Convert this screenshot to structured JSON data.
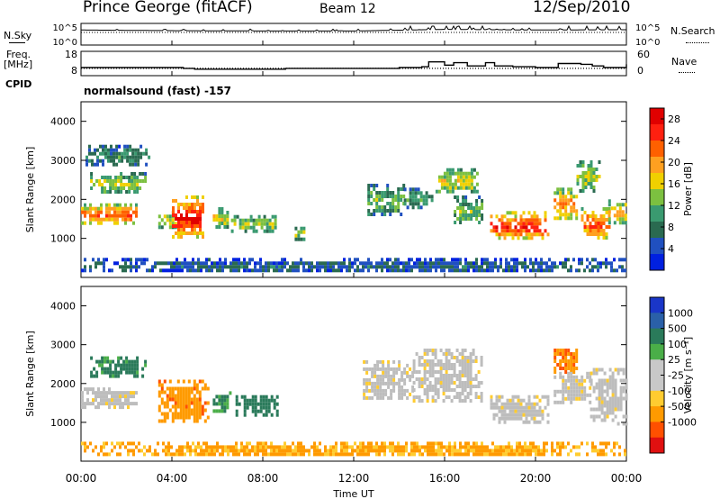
{
  "header": {
    "site": "Prince George (fitACF)",
    "beam": "Beam 12",
    "date": "12/Sep/2010"
  },
  "control": {
    "nsky_label": "N.Sky",
    "nsearch_label": "N.Search",
    "freq_label_1": "Freq.",
    "freq_label_2": "[MHz]",
    "nave_label": "Nave",
    "cpid_label": "CPID",
    "mode_text": "normalsound (fast) -157",
    "noise_ticks_left": [
      "10^5",
      "10^0"
    ],
    "noise_ticks_right": [
      "10^5",
      "10^0"
    ],
    "freq_ticks": [
      "18",
      "8"
    ],
    "nave_ticks": [
      "60",
      "0"
    ]
  },
  "colors": {
    "power_scale": [
      "#0020e0",
      "#2050c0",
      "#2a6a50",
      "#3a9a70",
      "#7cc040",
      "#f0d000",
      "#ffa020",
      "#ff6000",
      "#ff2010",
      "#e00000"
    ],
    "velocity_scale": [
      "#1a36c8",
      "#2a60a8",
      "#2a7a5a",
      "#4aae48",
      "#c8c8c8",
      "#c8c8c8",
      "#ffcc30",
      "#ff9a00",
      "#ff5000",
      "#e01010"
    ],
    "ground_scatter": "#bdbdbd"
  },
  "chart_data": [
    {
      "type": "line",
      "title": "N.Sky / N.Search",
      "x": [
        "00:00",
        "04:00",
        "08:00",
        "12:00",
        "16:00",
        "20:00",
        "00:00"
      ],
      "series": [
        {
          "name": "N.Sky",
          "values": [
            3.8,
            3.6,
            3.5,
            3.5,
            4.0,
            3.8,
            3.9
          ]
        }
      ]
    },
    {
      "type": "line",
      "title": "Freq. [MHz] / Nave",
      "x_hours": [
        0,
        1,
        2,
        3,
        4.5,
        5,
        6,
        7.5,
        8.5,
        9,
        10,
        11,
        12,
        13,
        14,
        15,
        15.3,
        16,
        16.4,
        17,
        17.8,
        18.2,
        19,
        20,
        21,
        22,
        22.5,
        23,
        24
      ],
      "series": [
        {
          "name": "Nave",
          "values": [
            20,
            20,
            20,
            20,
            18,
            16,
            16,
            16,
            16,
            18,
            18,
            18,
            18,
            18,
            20,
            22,
            34,
            26,
            32,
            24,
            32,
            24,
            22,
            20,
            30,
            28,
            24,
            20,
            28
          ]
        },
        {
          "name": "Freq.",
          "values": [
            11,
            11,
            11,
            11,
            11,
            11,
            11,
            11,
            11,
            11,
            11,
            11,
            11,
            11,
            11,
            11,
            11,
            11,
            11,
            11,
            11,
            11,
            11,
            11,
            11,
            11,
            11,
            11,
            11
          ]
        }
      ],
      "freq_ylim": [
        8,
        18
      ],
      "nave_ylim": [
        0,
        60
      ]
    },
    {
      "type": "heatmap",
      "title": "Power [dB]",
      "xlabel": "",
      "ylabel": "Slant Range [km]",
      "xlim": [
        0,
        24
      ],
      "ylim": [
        0,
        4500
      ],
      "x_ticks": [
        "00:00",
        "04:00",
        "08:00",
        "12:00",
        "16:00",
        "20:00",
        "00:00"
      ],
      "y_ticks": [
        "1000",
        "2000",
        "3000",
        "4000"
      ],
      "colorbar_label": "Power [dB]",
      "colorbar_ticks": [
        "4",
        "8",
        "12",
        "16",
        "20",
        "24",
        "28"
      ],
      "colorbar_range": [
        0,
        30
      ],
      "regions": [
        {
          "t": [
            0,
            2.4
          ],
          "r": [
            1400,
            1900
          ],
          "v": 22
        },
        {
          "t": [
            0.4,
            2.8
          ],
          "r": [
            2200,
            2700
          ],
          "v": 14
        },
        {
          "t": [
            0.2,
            3.0
          ],
          "r": [
            2900,
            3400
          ],
          "v": 9
        },
        {
          "t": [
            3.4,
            4.2
          ],
          "r": [
            1300,
            1700
          ],
          "v": 16
        },
        {
          "t": [
            4.0,
            5.4
          ],
          "r": [
            1000,
            2100
          ],
          "v": 26
        },
        {
          "t": [
            5.8,
            6.5
          ],
          "r": [
            1300,
            1800
          ],
          "v": 16
        },
        {
          "t": [
            6.6,
            8.6
          ],
          "r": [
            1200,
            1600
          ],
          "v": 14
        },
        {
          "t": [
            9.4,
            9.8
          ],
          "r": [
            1000,
            1300
          ],
          "v": 14
        },
        {
          "t": [
            12.6,
            14.2
          ],
          "r": [
            1600,
            2400
          ],
          "v": 12
        },
        {
          "t": [
            14.2,
            15.4
          ],
          "r": [
            1800,
            2300
          ],
          "v": 10
        },
        {
          "t": [
            15.6,
            17.4
          ],
          "r": [
            2200,
            2800
          ],
          "v": 16
        },
        {
          "t": [
            16.4,
            17.6
          ],
          "r": [
            1400,
            2100
          ],
          "v": 12
        },
        {
          "t": [
            18.0,
            20.6
          ],
          "r": [
            1000,
            1700
          ],
          "v": 24
        },
        {
          "t": [
            20.8,
            21.8
          ],
          "r": [
            1500,
            2300
          ],
          "v": 20
        },
        {
          "t": [
            21.8,
            22.8
          ],
          "r": [
            2200,
            3000
          ],
          "v": 14
        },
        {
          "t": [
            22.0,
            23.2
          ],
          "r": [
            1000,
            1800
          ],
          "v": 22
        },
        {
          "t": [
            23.2,
            24.0
          ],
          "r": [
            1400,
            2000
          ],
          "v": 18
        },
        {
          "t": [
            0,
            24
          ],
          "r": [
            150,
            500
          ],
          "v": 6
        }
      ]
    },
    {
      "type": "heatmap",
      "title": "Velocity [m s^-1]",
      "xlabel": "Time UT",
      "ylabel": "Slant Range [km]",
      "xlim": [
        0,
        24
      ],
      "ylim": [
        0,
        4500
      ],
      "x_ticks": [
        "00:00",
        "04:00",
        "08:00",
        "12:00",
        "16:00",
        "20:00",
        "00:00"
      ],
      "y_ticks": [
        "1000",
        "2000",
        "3000",
        "4000"
      ],
      "colorbar_label": "Velocity [m s⁻¹]",
      "colorbar_ticks": [
        "1000",
        "500",
        "100",
        "25",
        "-25",
        "-100",
        "-500",
        "-1000"
      ],
      "colorbar_range": [
        -1200,
        1200
      ],
      "regions": [
        {
          "t": [
            0,
            2.4
          ],
          "r": [
            1400,
            1900
          ],
          "v": 0,
          "gs": true
        },
        {
          "t": [
            0.4,
            2.8
          ],
          "r": [
            2200,
            2700
          ],
          "v": 200
        },
        {
          "t": [
            3.4,
            5.6
          ],
          "r": [
            1000,
            2100
          ],
          "v": -400
        },
        {
          "t": [
            5.8,
            6.6
          ],
          "r": [
            1300,
            1800
          ],
          "v": 150
        },
        {
          "t": [
            6.8,
            8.6
          ],
          "r": [
            1200,
            1700
          ],
          "v": 250
        },
        {
          "t": [
            12.4,
            14.6
          ],
          "r": [
            1600,
            2600
          ],
          "v": 0,
          "gs": true
        },
        {
          "t": [
            14.6,
            17.6
          ],
          "r": [
            1600,
            2900
          ],
          "v": 0,
          "gs": true
        },
        {
          "t": [
            18.0,
            20.6
          ],
          "r": [
            1000,
            1700
          ],
          "v": 0,
          "gs": true
        },
        {
          "t": [
            20.8,
            21.8
          ],
          "r": [
            2300,
            2900
          ],
          "v": -450
        },
        {
          "t": [
            20.8,
            22.4
          ],
          "r": [
            1500,
            2300
          ],
          "v": 0,
          "gs": true
        },
        {
          "t": [
            22.4,
            24.0
          ],
          "r": [
            1000,
            2400
          ],
          "v": 0,
          "gs": true
        },
        {
          "t": [
            0,
            24
          ],
          "r": [
            150,
            500
          ],
          "v": -150
        }
      ]
    }
  ]
}
